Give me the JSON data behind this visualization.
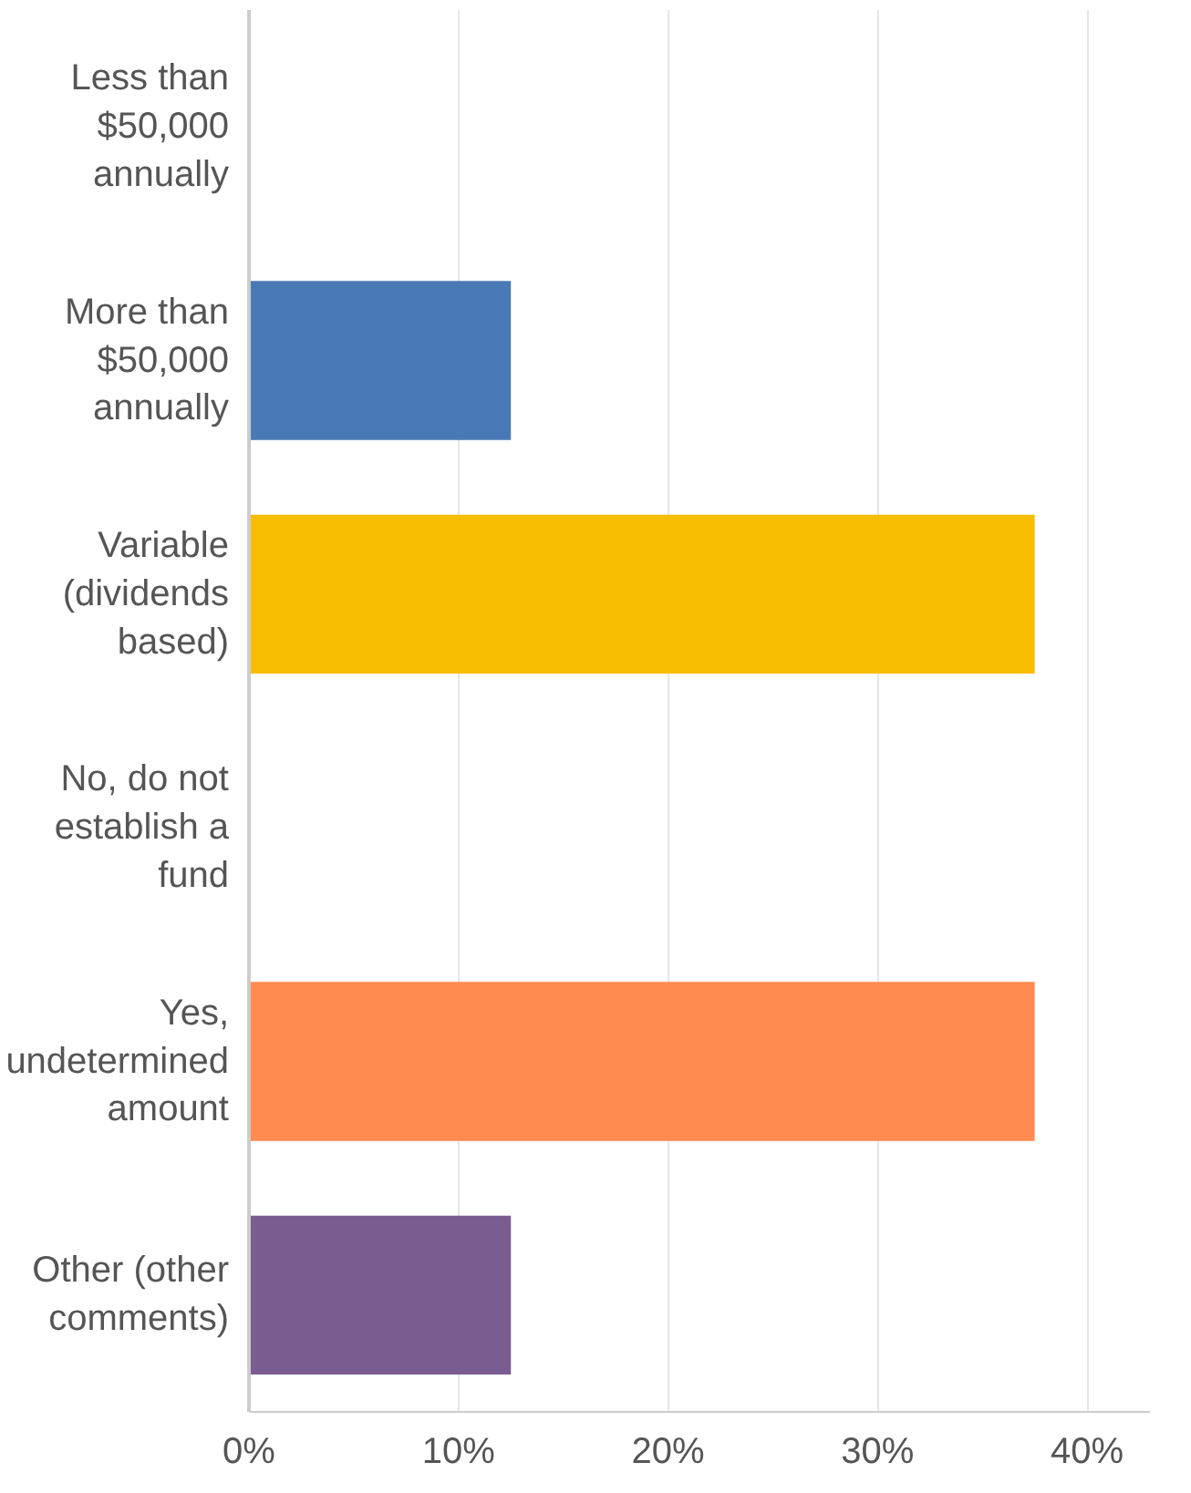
{
  "chart_data": {
    "type": "bar",
    "orientation": "horizontal",
    "categories": [
      "Less than $50,000 annually",
      "More than $50,000 annually",
      "Variable (dividends based)",
      "No, do not establish a fund",
      "Yes, undetermined amount",
      "Other (other comments)"
    ],
    "values": [
      0,
      12.5,
      37.5,
      0,
      37.5,
      12.5
    ],
    "colors": [
      "#00bf6f",
      "#4a7ab5",
      "#f7bd00",
      "#6bc8cd",
      "#ff8b4f",
      "#7a5c91"
    ],
    "xlim": [
      0,
      43
    ],
    "xticks": [
      {
        "value": 0,
        "label": "0%"
      },
      {
        "value": 10,
        "label": "10%"
      },
      {
        "value": 20,
        "label": "20%"
      },
      {
        "value": 30,
        "label": "30%"
      },
      {
        "value": 40,
        "label": "40%"
      }
    ],
    "grid": "x"
  }
}
